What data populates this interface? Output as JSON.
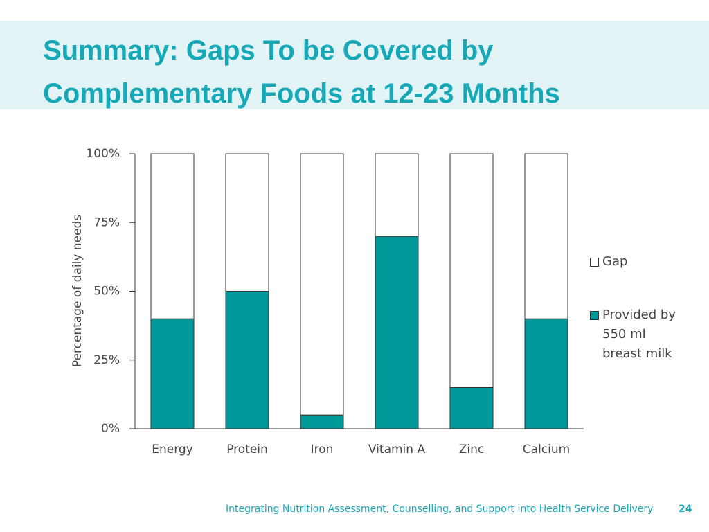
{
  "header": {
    "title": "Summary: Gaps To be Covered by Complementary Foods at 12-23 Months"
  },
  "chart_data": {
    "type": "stacked_bar",
    "ylabel": "Percentage of daily needs",
    "categories": [
      "Energy",
      "Protein",
      "Iron",
      "Vitamin A",
      "Zinc",
      "Calcium"
    ],
    "series": [
      {
        "name": "Provided by 550 ml breast milk",
        "color": "#009999",
        "values": [
          40,
          50,
          5,
          70,
          15,
          40
        ]
      },
      {
        "name": "Gap",
        "color": "#ffffff",
        "values": [
          60,
          50,
          95,
          30,
          85,
          60
        ]
      }
    ],
    "ylim": [
      0,
      100
    ],
    "yticks": [
      {
        "value": 0,
        "label": "0%"
      },
      {
        "value": 25,
        "label": "25%"
      },
      {
        "value": 50,
        "label": "50%"
      },
      {
        "value": 75,
        "label": "75%"
      },
      {
        "value": 100,
        "label": "100%"
      }
    ],
    "grid": false,
    "legend": "right"
  },
  "footer": {
    "text": "Integrating Nutrition Assessment, Counselling, and Support into Health Service Delivery",
    "page": "24"
  }
}
